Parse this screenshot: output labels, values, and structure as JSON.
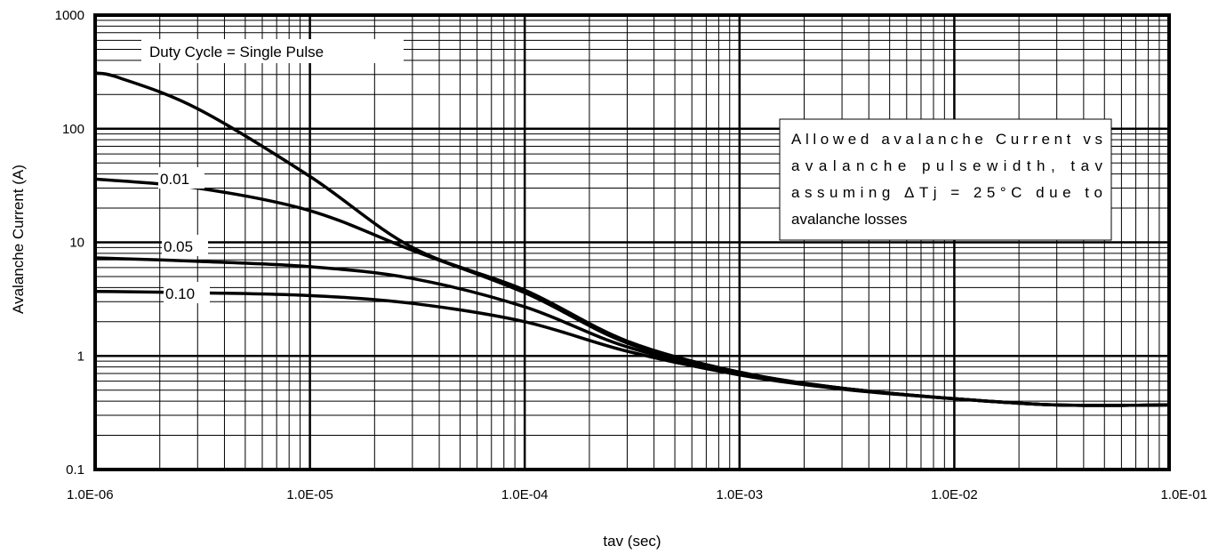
{
  "chart_data": {
    "type": "line",
    "title": "",
    "xlabel": "tav (sec)",
    "ylabel": "Avalanche Current (A)",
    "x_scale": "log",
    "y_scale": "log",
    "xlim": [
      1e-06,
      0.1
    ],
    "ylim": [
      0.1,
      1000
    ],
    "grid": true,
    "legend": "none",
    "x_tick_labels": [
      "1.0E-06",
      "1.0E-05",
      "1.0E-04",
      "1.0E-03",
      "1.0E-02",
      "1.0E-01"
    ],
    "y_tick_labels": [
      "0.1",
      "1",
      "10",
      "100",
      "1000"
    ],
    "annotations": [
      "Duty Cycle = Single Pulse",
      "Allowed avalanche Current vs",
      "avalanche pulsewidth, tav",
      "assuming ΔTj = 25°C due to",
      "avalanche losses"
    ],
    "series": [
      {
        "x": [
          1e-06,
          1.3e-06,
          3e-06,
          1e-05,
          3e-05,
          0.0001,
          0.0003,
          0.001,
          0.003,
          0.01,
          0.03,
          0.1
        ],
        "y": [
          310,
          280,
          150,
          38,
          9,
          3.8,
          1.35,
          0.72,
          0.52,
          0.42,
          0.37,
          0.37
        ]
      },
      {
        "name": "0.01",
        "x": [
          1e-06,
          3e-06,
          1e-05,
          3e-05,
          0.0001,
          0.0003,
          0.001,
          0.003,
          0.01,
          0.03,
          0.1
        ],
        "y": [
          36,
          30,
          19,
          8.5,
          3.6,
          1.3,
          0.72,
          0.52,
          0.42,
          0.37,
          0.37
        ]
      },
      {
        "name": "0.05",
        "x": [
          1e-06,
          3e-06,
          1e-05,
          3e-05,
          0.0001,
          0.0003,
          0.001,
          0.003,
          0.01,
          0.03,
          0.1
        ],
        "y": [
          7.3,
          6.8,
          6.1,
          4.8,
          2.7,
          1.2,
          0.7,
          0.52,
          0.42,
          0.37,
          0.37
        ]
      },
      {
        "name": "0.10",
        "x": [
          1e-06,
          3e-06,
          1e-05,
          3e-05,
          0.0001,
          0.0003,
          0.001,
          0.003,
          0.01,
          0.03,
          0.1
        ],
        "y": [
          3.7,
          3.6,
          3.4,
          2.9,
          2.0,
          1.1,
          0.68,
          0.51,
          0.42,
          0.37,
          0.37
        ]
      }
    ],
    "colors": {
      "lines": "#000000",
      "grid": "#000000",
      "background": "#ffffff"
    }
  }
}
